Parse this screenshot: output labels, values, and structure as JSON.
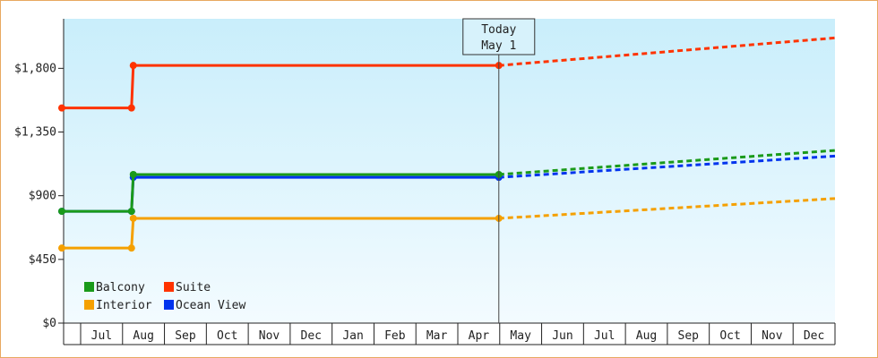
{
  "chart_data": {
    "type": "line",
    "y_ticks": [
      "$0",
      "$450",
      "$900",
      "$1,350",
      "$1,800"
    ],
    "ylim": [
      0,
      2150
    ],
    "categories": [
      "Jul",
      "Aug",
      "Sep",
      "Oct",
      "Nov",
      "Dec",
      "Jan",
      "Feb",
      "Mar",
      "Apr",
      "May",
      "Jun",
      "Jul",
      "Aug",
      "Sep",
      "Oct",
      "Nov",
      "Dec"
    ],
    "today": {
      "line1": "Today",
      "line2": "May 1"
    },
    "series": [
      {
        "name": "Balcony",
        "color": "#1a9a1a",
        "actual": [
          {
            "x": "Jul 1",
            "y": 790
          },
          {
            "x": "Aug 1",
            "y": 790
          },
          {
            "x": "Aug 1",
            "y": 1050
          },
          {
            "x": "May 1",
            "y": 1050
          }
        ],
        "forecast": [
          {
            "x": "May 1",
            "y": 1050
          },
          {
            "x": "Jan 1",
            "y": 1220
          }
        ]
      },
      {
        "name": "Suite",
        "color": "#ff3300",
        "actual": [
          {
            "x": "Jul 1",
            "y": 1520
          },
          {
            "x": "Aug 1",
            "y": 1520
          },
          {
            "x": "Aug 1",
            "y": 1820
          },
          {
            "x": "May 1",
            "y": 1820
          }
        ],
        "forecast": [
          {
            "x": "May 1",
            "y": 1820
          },
          {
            "x": "Jan 1",
            "y": 2015
          }
        ]
      },
      {
        "name": "Interior",
        "color": "#f5a000",
        "actual": [
          {
            "x": "Jul 1",
            "y": 530
          },
          {
            "x": "Aug 1",
            "y": 530
          },
          {
            "x": "Aug 1",
            "y": 740
          },
          {
            "x": "May 1",
            "y": 740
          }
        ],
        "forecast": [
          {
            "x": "May 1",
            "y": 740
          },
          {
            "x": "Jan 1",
            "y": 880
          }
        ]
      },
      {
        "name": "Ocean View",
        "color": "#0033ee",
        "actual": [
          {
            "x": "Jul 1",
            "y": 790
          },
          {
            "x": "Aug 1",
            "y": 790
          },
          {
            "x": "Aug 1",
            "y": 1030
          },
          {
            "x": "May 1",
            "y": 1030
          }
        ],
        "forecast": [
          {
            "x": "May 1",
            "y": 1030
          },
          {
            "x": "Jan 1",
            "y": 1180
          }
        ]
      }
    ],
    "legend": {
      "placement": "bottom-left"
    },
    "colors": {
      "plot_top": "#c9eefb",
      "plot_bottom": "#f3fbff",
      "frame_border": "#e8a860"
    }
  }
}
